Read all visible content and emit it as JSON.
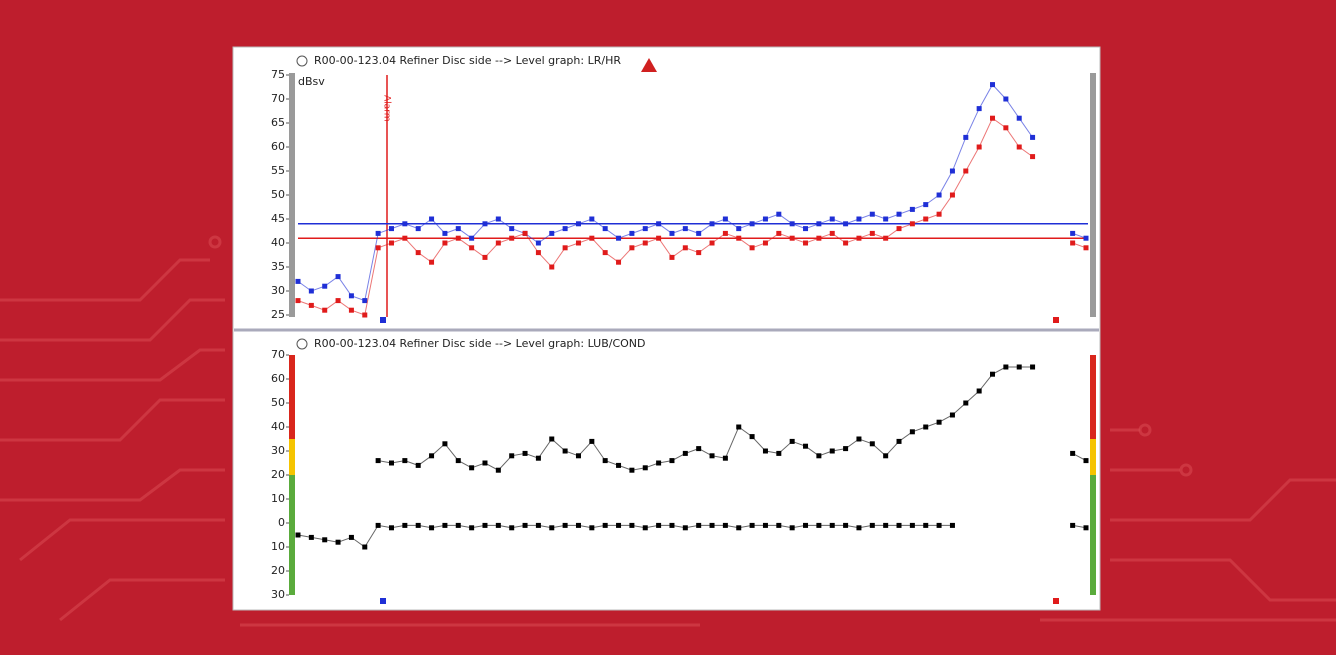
{
  "chart_data": [
    {
      "type": "line",
      "title": "R00-00-123.04 Refiner Disc side --> Level graph: LR/HR",
      "y_label": "dBsv",
      "annotation": "Alarm",
      "ylim": [
        25,
        75
      ],
      "yticks": [
        25,
        30,
        35,
        40,
        45,
        50,
        55,
        60,
        65,
        70,
        75
      ],
      "thresholds": [
        {
          "value": 44,
          "color": "#1f2fd6"
        },
        {
          "value": 41,
          "color": "#e01b1b"
        }
      ],
      "series": [
        {
          "color": "#1f2fd6",
          "values": [
            32,
            30,
            31,
            33,
            29,
            28,
            42,
            43,
            44,
            43,
            45,
            42,
            43,
            41,
            44,
            45,
            43,
            42,
            40,
            42,
            43,
            44,
            45,
            43,
            41,
            42,
            43,
            44,
            42,
            43,
            42,
            44,
            45,
            43,
            44,
            45,
            46,
            44,
            43,
            44,
            45,
            44,
            45,
            46,
            45,
            46,
            47,
            48,
            50,
            55,
            62,
            68,
            73,
            70,
            66,
            62,
            null,
            null,
            42,
            41
          ]
        },
        {
          "color": "#e01b1b",
          "values": [
            28,
            27,
            26,
            28,
            26,
            25,
            39,
            40,
            41,
            38,
            36,
            40,
            41,
            39,
            37,
            40,
            41,
            42,
            38,
            35,
            39,
            40,
            41,
            38,
            36,
            39,
            40,
            41,
            37,
            39,
            38,
            40,
            42,
            41,
            39,
            40,
            42,
            41,
            40,
            41,
            42,
            40,
            41,
            42,
            41,
            43,
            44,
            45,
            46,
            50,
            55,
            60,
            66,
            64,
            60,
            58,
            null,
            null,
            40,
            39
          ]
        }
      ]
    },
    {
      "type": "line",
      "title": "R00-00-123.04 Refiner Disc side --> Level graph: LUB/COND",
      "ylim": [
        -30,
        70
      ],
      "yticks": [
        {
          "value": -30,
          "label": "30"
        },
        {
          "value": -20,
          "label": "20"
        },
        {
          "value": -10,
          "label": "10"
        },
        0,
        10,
        20,
        30,
        40,
        50,
        60,
        70
      ],
      "bands": [
        {
          "from": 35,
          "to": 70,
          "color": "#d9261c"
        },
        {
          "from": 20,
          "to": 35,
          "color": "#f5c400"
        },
        {
          "from": -30,
          "to": 20,
          "color": "#5aab3c"
        }
      ],
      "series": [
        {
          "color": "#000000",
          "values": [
            null,
            null,
            null,
            null,
            null,
            null,
            26,
            25,
            26,
            24,
            28,
            33,
            26,
            23,
            25,
            22,
            28,
            29,
            27,
            35,
            30,
            28,
            34,
            26,
            24,
            22,
            23,
            25,
            26,
            29,
            31,
            28,
            27,
            40,
            36,
            30,
            29,
            34,
            32,
            28,
            30,
            31,
            35,
            33,
            28,
            34,
            38,
            40,
            42,
            45,
            50,
            55,
            62,
            65,
            65,
            65,
            null,
            null,
            29,
            26
          ]
        },
        {
          "color": "#000000",
          "values": [
            -5,
            -6,
            -7,
            -8,
            -6,
            -10,
            -1,
            -2,
            -1,
            -1,
            -2,
            -1,
            -1,
            -2,
            -1,
            -1,
            -2,
            -1,
            -1,
            -2,
            -1,
            -1,
            -2,
            -1,
            -1,
            -1,
            -2,
            -1,
            -1,
            -2,
            -1,
            -1,
            -1,
            -2,
            -1,
            -1,
            -1,
            -2,
            -1,
            -1,
            -1,
            -1,
            -2,
            -1,
            -1,
            -1,
            -1,
            -1,
            -1,
            -1,
            null,
            null,
            null,
            null,
            null,
            null,
            null,
            null,
            -1,
            -2
          ]
        }
      ]
    }
  ]
}
